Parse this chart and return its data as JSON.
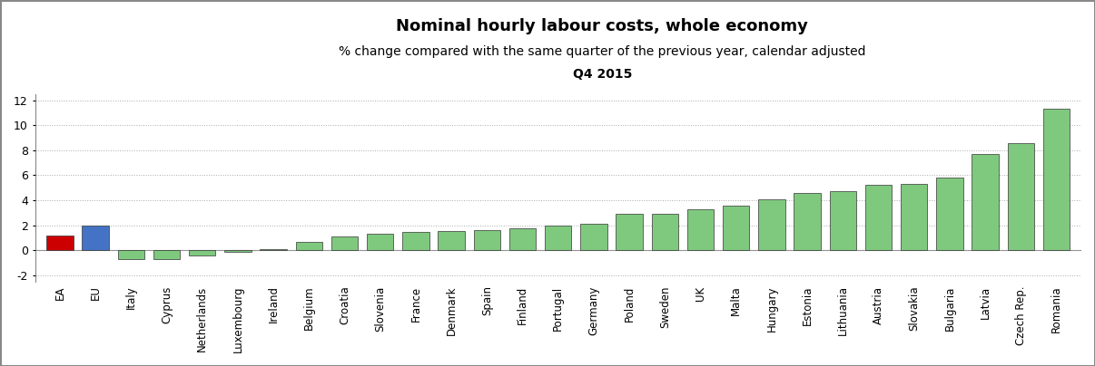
{
  "categories": [
    "EA",
    "EU",
    "Italy",
    "Cyprus",
    "Netherlands",
    "Luxembourg",
    "Ireland",
    "Belgium",
    "Croatia",
    "Slovenia",
    "France",
    "Denmark",
    "Spain",
    "Finland",
    "Portugal",
    "Germany",
    "Poland",
    "Sweden",
    "UK",
    "Malta",
    "Hungary",
    "Estonia",
    "Lithuania",
    "Austria",
    "Slovakia",
    "Bulgaria",
    "Latvia",
    "Czech Rep.",
    "Romania"
  ],
  "values": [
    1.2,
    2.0,
    -0.7,
    -0.7,
    -0.4,
    -0.15,
    0.05,
    0.7,
    1.1,
    1.35,
    1.5,
    1.55,
    1.6,
    1.75,
    2.0,
    2.15,
    2.9,
    2.95,
    3.3,
    3.55,
    4.1,
    4.55,
    4.7,
    5.25,
    5.3,
    5.85,
    7.7,
    8.6,
    11.3
  ],
  "bar_colors": [
    "#cc0000",
    "#4472c4",
    "#7fc97f",
    "#7fc97f",
    "#7fc97f",
    "#7fc97f",
    "#7fc97f",
    "#7fc97f",
    "#7fc97f",
    "#7fc97f",
    "#7fc97f",
    "#7fc97f",
    "#7fc97f",
    "#7fc97f",
    "#7fc97f",
    "#7fc97f",
    "#7fc97f",
    "#7fc97f",
    "#7fc97f",
    "#7fc97f",
    "#7fc97f",
    "#7fc97f",
    "#7fc97f",
    "#7fc97f",
    "#7fc97f",
    "#7fc97f",
    "#7fc97f",
    "#7fc97f",
    "#7fc97f"
  ],
  "title": "Nominal hourly labour costs, whole economy",
  "subtitle1": "% change compared with the same quarter of the previous year, calendar adjusted",
  "subtitle2": "Q4 2015",
  "ylim": [
    -2.5,
    12.5
  ],
  "yticks": [
    -2,
    0,
    2,
    4,
    6,
    8,
    10,
    12
  ],
  "title_fontsize": 13,
  "subtitle_fontsize": 10,
  "background_color": "#ffffff",
  "grid_color": "#aaaaaa",
  "bar_width": 0.75
}
